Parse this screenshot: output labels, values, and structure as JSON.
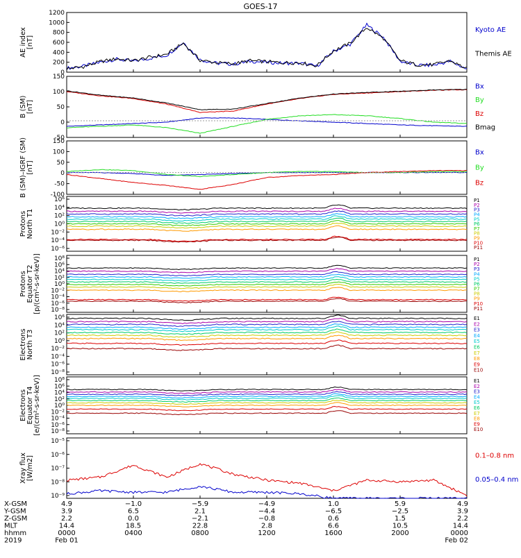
{
  "title": "GOES-17",
  "colors": {
    "bg": "#ffffff",
    "axis": "#000000",
    "black": "#000000",
    "blue": "#0000cc",
    "green": "#22dd22",
    "red": "#dd0000",
    "darkred": "#990000"
  },
  "chart_data": [
    {
      "id": "ae",
      "type": "line",
      "ylabel": [
        "AE index",
        "[nT]"
      ],
      "ylim": [
        0,
        1200
      ],
      "yticks": [
        "0",
        "200",
        "400",
        "600",
        "800",
        "1000",
        "1200"
      ],
      "legend": [
        {
          "name": "Kyoto AE",
          "color": "#0000cc"
        },
        {
          "name": "Themis AE",
          "color": "#000000"
        }
      ],
      "x": [
        0,
        1,
        2,
        3,
        4,
        5,
        6,
        7,
        8,
        9,
        10,
        11,
        12,
        13,
        14,
        15,
        16,
        17,
        18,
        19,
        20,
        21,
        22,
        23,
        24
      ],
      "series": [
        {
          "name": "Kyoto AE",
          "color": "#0000cc",
          "values": [
            80,
            120,
            200,
            260,
            220,
            280,
            340,
            600,
            250,
            180,
            160,
            220,
            200,
            180,
            180,
            120,
            420,
            560,
            950,
            700,
            220,
            140,
            140,
            220,
            60
          ]
        },
        {
          "name": "Themis AE",
          "color": "#000000",
          "values": [
            70,
            110,
            210,
            270,
            230,
            300,
            360,
            580,
            240,
            190,
            170,
            230,
            210,
            190,
            190,
            130,
            430,
            580,
            900,
            680,
            230,
            150,
            150,
            230,
            70
          ]
        }
      ]
    },
    {
      "id": "bsm",
      "type": "line",
      "ylabel": [
        "B (SM)",
        "[nT]"
      ],
      "ylim": [
        -60,
        160
      ],
      "yticks": [
        "-50",
        "0",
        "50",
        "100",
        "150"
      ],
      "legend": [
        {
          "name": "Bx",
          "color": "#0000cc"
        },
        {
          "name": "By",
          "color": "#22dd22"
        },
        {
          "name": "Bz",
          "color": "#dd0000"
        },
        {
          "name": "Bmag",
          "color": "#000000"
        }
      ],
      "x": [
        0,
        2,
        4,
        6,
        8,
        10,
        12,
        14,
        16,
        18,
        20,
        22,
        24
      ],
      "series": [
        {
          "name": "Bx",
          "color": "#0000cc",
          "values": [
            -20,
            -15,
            -10,
            -5,
            10,
            10,
            5,
            0,
            -5,
            -10,
            -15,
            -18,
            -20
          ]
        },
        {
          "name": "By",
          "color": "#22dd22",
          "values": [
            -25,
            -20,
            -15,
            -25,
            -45,
            -20,
            5,
            18,
            22,
            18,
            8,
            -5,
            -10
          ]
        },
        {
          "name": "Bz",
          "color": "#dd0000",
          "values": [
            105,
            90,
            80,
            60,
            30,
            35,
            60,
            80,
            95,
            100,
            105,
            110,
            112
          ]
        },
        {
          "name": "Bmag",
          "color": "#000000",
          "values": [
            108,
            92,
            82,
            64,
            40,
            42,
            62,
            82,
            96,
            102,
            106,
            111,
            113
          ]
        }
      ]
    },
    {
      "id": "bigrf",
      "type": "line",
      "ylabel": [
        "B (SM)–IGRF (SM)",
        "[nT]"
      ],
      "ylim": [
        -110,
        160
      ],
      "yticks": [
        "-100",
        "-50",
        "0",
        "50",
        "100",
        "150"
      ],
      "legend": [
        {
          "name": "Bx",
          "color": "#0000cc"
        },
        {
          "name": "By",
          "color": "#22dd22"
        },
        {
          "name": "Bz",
          "color": "#dd0000"
        }
      ],
      "x": [
        0,
        2,
        4,
        6,
        8,
        10,
        12,
        14,
        16,
        18,
        20,
        22,
        24
      ],
      "series": [
        {
          "name": "Bx",
          "color": "#0000cc",
          "values": [
            0,
            0,
            -5,
            -15,
            -10,
            -5,
            0,
            0,
            0,
            0,
            0,
            0,
            0
          ]
        },
        {
          "name": "By",
          "color": "#22dd22",
          "values": [
            5,
            15,
            10,
            -10,
            -20,
            -10,
            0,
            5,
            5,
            0,
            0,
            5,
            5
          ]
        },
        {
          "name": "Bz",
          "color": "#dd0000",
          "values": [
            -10,
            -30,
            -50,
            -65,
            -85,
            -60,
            -25,
            -15,
            -10,
            0,
            5,
            10,
            10
          ]
        }
      ]
    },
    {
      "id": "p1",
      "type": "line",
      "log": true,
      "ylabel": [
        "Protons",
        "North T1"
      ],
      "ylim": [
        -7,
        7
      ],
      "yticks": [
        "10⁶",
        "10⁴",
        "10²",
        "10⁰",
        "10⁻²",
        "10⁻⁴",
        "10⁻⁶"
      ],
      "legend": [
        "P1",
        "P2",
        "P3",
        "P4",
        "P5",
        "P6",
        "P7",
        "P8",
        "P9",
        "P10",
        "P11"
      ],
      "levels": [
        4,
        3.2,
        2.5,
        1.8,
        1.2,
        0.6,
        0,
        -0.6,
        -1.4,
        -4,
        -4.2
      ]
    },
    {
      "id": "p2",
      "type": "line",
      "log": true,
      "ylabel": [
        "Protons",
        "Equator T2",
        "[p/(cm²-s-sr-keV)]"
      ],
      "ylim": [
        -9,
        9
      ],
      "yticks": [
        "10⁸",
        "10⁶",
        "10⁴",
        "10²",
        "10⁰",
        "10⁻²",
        "10⁻⁴",
        "10⁻⁶",
        "10⁻⁸"
      ],
      "legend": [
        "P1",
        "P2",
        "P3",
        "P4",
        "P5",
        "P6",
        "P7",
        "P8",
        "P9",
        "P10",
        "P11"
      ],
      "levels": [
        5,
        4,
        3,
        2.2,
        1.4,
        0.6,
        -0.2,
        -1,
        -2,
        -5,
        -5.5
      ]
    },
    {
      "id": "e1",
      "type": "line",
      "log": true,
      "ylabel": [
        "Electrons",
        "North T3"
      ],
      "ylim": [
        -9,
        6
      ],
      "yticks": [
        "10⁶",
        "10⁴",
        "10²",
        "10⁰",
        "10⁻²",
        "10⁻⁴",
        "10⁻⁶",
        "10⁻⁸"
      ],
      "legend": [
        "E1",
        "E2",
        "E3",
        "E4",
        "E5",
        "E6",
        "E7",
        "E8",
        "E9",
        "E10"
      ],
      "levels": [
        5,
        4.2,
        3.5,
        2.8,
        2.2,
        1.5,
        0.8,
        0,
        -1.2,
        -2.5
      ]
    },
    {
      "id": "e2",
      "type": "line",
      "log": true,
      "ylabel": [
        "Electrons",
        "Equator T4",
        "[e/(cm²-s-sr-keV)]"
      ],
      "ylim": [
        -9,
        9
      ],
      "yticks": [
        "10⁸",
        "10⁶",
        "10⁴",
        "10²",
        "10⁰",
        "10⁻²",
        "10⁻⁴",
        "10⁻⁶",
        "10⁻⁸"
      ],
      "legend": [
        "E1",
        "E2",
        "E3",
        "E4",
        "E5",
        "E6",
        "E7",
        "E8",
        "E9",
        "E10"
      ],
      "levels": [
        5,
        4.2,
        3.5,
        2.8,
        2.2,
        1.5,
        0.8,
        0,
        -1.2,
        -2.5
      ]
    },
    {
      "id": "xray",
      "type": "line",
      "log": true,
      "ylabel": [
        "Xray flux",
        "[W/m2]"
      ],
      "ylim": [
        -9,
        -5
      ],
      "yticks": [
        "10⁻⁵",
        "10⁻⁶",
        "10⁻⁷",
        "10⁻⁸",
        "10⁻⁹"
      ],
      "legend": [
        {
          "name": "0.1–0.8 nm",
          "color": "#dd0000"
        },
        {
          "name": "0.05–0.4 nm",
          "color": "#0000cc"
        }
      ],
      "x": [
        0,
        2,
        4,
        6,
        8,
        10,
        12,
        14,
        16,
        18,
        20,
        22,
        24
      ],
      "series": [
        {
          "name": "0.1–0.8 nm",
          "color": "#dd0000",
          "values": [
            -7.8,
            -7.6,
            -6.8,
            -7.6,
            -6.7,
            -7.4,
            -7.8,
            -8,
            -8.5,
            -7.8,
            -7.9,
            -7.8,
            -8.8
          ]
        },
        {
          "name": "0.05–0.4 nm",
          "color": "#0000cc",
          "values": [
            -8.7,
            -8.5,
            -8.6,
            -8.6,
            -8.2,
            -8.6,
            -8.6,
            -8.7,
            -9,
            -9,
            -9,
            -9,
            -9
          ]
        }
      ]
    }
  ],
  "ephemeris": {
    "labels": [
      "X-GSM",
      "Y-GSM",
      "Z-GSM",
      "MLT",
      "hhmm",
      "2019"
    ],
    "columns": [
      [
        "4.9",
        "3.9",
        "2.2",
        "14.4",
        "0000",
        "Feb 01"
      ],
      [
        "−1.0",
        "6.5",
        "0.0",
        "18.5",
        "0400",
        ""
      ],
      [
        "−5.9",
        "2.1",
        "−2.1",
        "22.8",
        "0800",
        ""
      ],
      [
        "−4.9",
        "−4.4",
        "−0.8",
        "2.8",
        "1200",
        ""
      ],
      [
        "1.0",
        "−6.5",
        "0.6",
        "6.6",
        "1600",
        ""
      ],
      [
        "5.9",
        "−2.5",
        "1.5",
        "10.5",
        "2000",
        ""
      ],
      [
        "4.9",
        "3.9",
        "2.2",
        "14.4",
        "0000",
        "Feb 02"
      ]
    ]
  }
}
